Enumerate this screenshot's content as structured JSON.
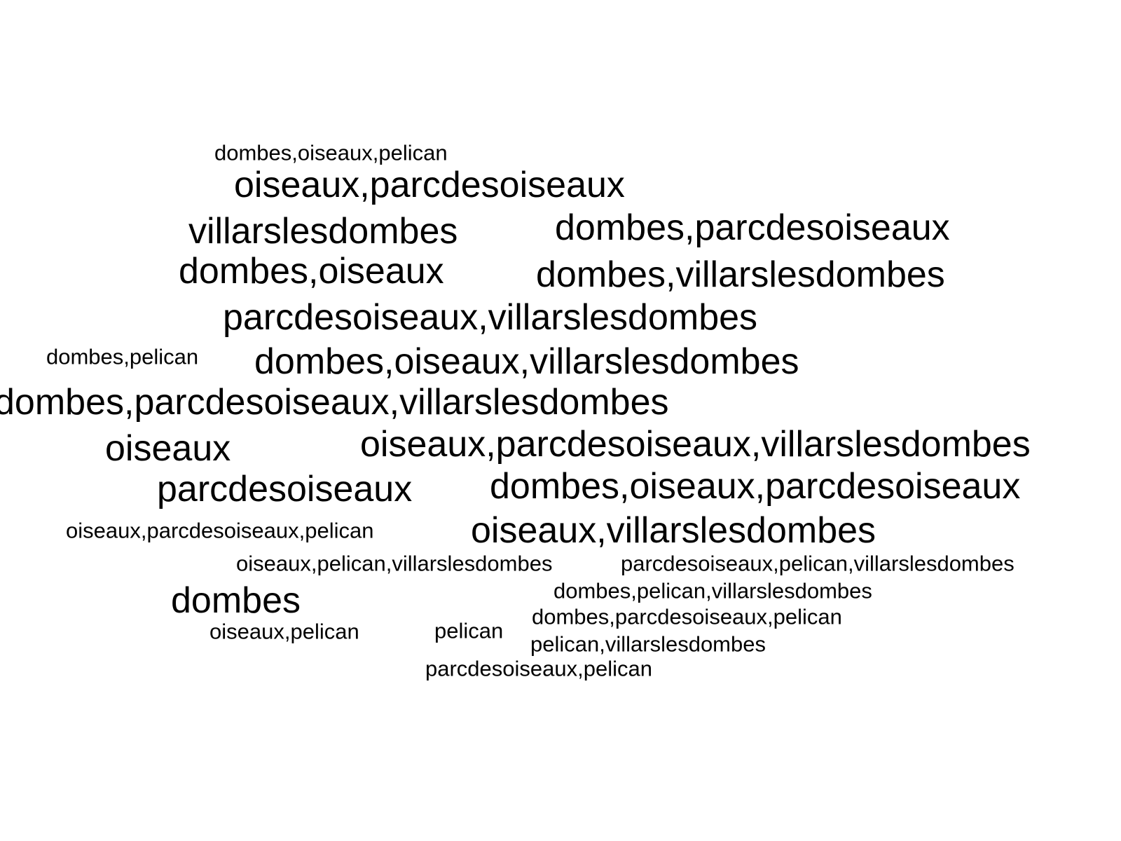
{
  "word_cloud": {
    "text_color": "#000000",
    "background": "#ffffff",
    "words": [
      {
        "text": "dombes,oiseaux,pelican",
        "weight": 1
      },
      {
        "text": "oiseaux,parcdesoiseaux",
        "weight": 3
      },
      {
        "text": "villarslesdombes",
        "weight": 3
      },
      {
        "text": "dombes,parcdesoiseaux",
        "weight": 3
      },
      {
        "text": "dombes,oiseaux",
        "weight": 3
      },
      {
        "text": "dombes,villarslesdombes",
        "weight": 3
      },
      {
        "text": "parcdesoiseaux,villarslesdombes",
        "weight": 3
      },
      {
        "text": "dombes,pelican",
        "weight": 1
      },
      {
        "text": "dombes,oiseaux,villarslesdombes",
        "weight": 3
      },
      {
        "text": "dombes,parcdesoiseaux,villarslesdombes",
        "weight": 3
      },
      {
        "text": "oiseaux",
        "weight": 3
      },
      {
        "text": "oiseaux,parcdesoiseaux,villarslesdombes",
        "weight": 3
      },
      {
        "text": "parcdesoiseaux",
        "weight": 3
      },
      {
        "text": "dombes,oiseaux,parcdesoiseaux",
        "weight": 3
      },
      {
        "text": "oiseaux,parcdesoiseaux,pelican",
        "weight": 1
      },
      {
        "text": "oiseaux,villarslesdombes",
        "weight": 3
      },
      {
        "text": "oiseaux,pelican,villarslesdombes",
        "weight": 1
      },
      {
        "text": "parcdesoiseaux,pelican,villarslesdombes",
        "weight": 1
      },
      {
        "text": "dombes,pelican,villarslesdombes",
        "weight": 1
      },
      {
        "text": "dombes",
        "weight": 3
      },
      {
        "text": "dombes,parcdesoiseaux,pelican",
        "weight": 1
      },
      {
        "text": "oiseaux,pelican",
        "weight": 1
      },
      {
        "text": "pelican",
        "weight": 1
      },
      {
        "text": "pelican,villarslesdombes",
        "weight": 1
      },
      {
        "text": "parcdesoiseaux,pelican",
        "weight": 1
      }
    ]
  }
}
